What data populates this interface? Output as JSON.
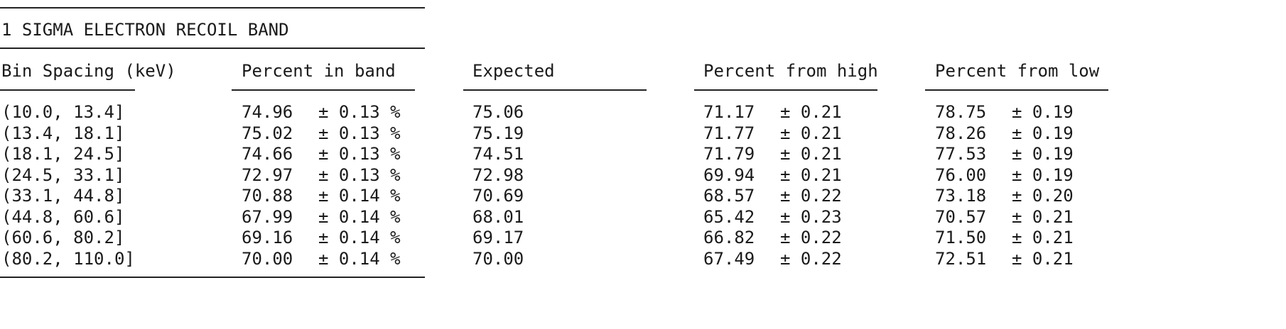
{
  "title": "1 SIGMA ELECTRON RECOIL BAND",
  "headers": [
    "Bin Spacing (keV)",
    "Percent in band",
    "Expected",
    "Percent from high",
    "Percent from low"
  ],
  "rows": [
    {
      "bin": "(10.0, 13.4]",
      "in_band": "74.96",
      "in_band_err": "± 0.13 %",
      "expected": "75.06",
      "high": "71.17",
      "high_err": "± 0.21",
      "low": "78.75",
      "low_err": "± 0.19"
    },
    {
      "bin": "(13.4, 18.1]",
      "in_band": "75.02",
      "in_band_err": "± 0.13 %",
      "expected": "75.19",
      "high": "71.77",
      "high_err": "± 0.21",
      "low": "78.26",
      "low_err": "± 0.19"
    },
    {
      "bin": "(18.1, 24.5]",
      "in_band": "74.66",
      "in_band_err": "± 0.13 %",
      "expected": "74.51",
      "high": "71.79",
      "high_err": "± 0.21",
      "low": "77.53",
      "low_err": "± 0.19"
    },
    {
      "bin": "(24.5, 33.1]",
      "in_band": "72.97",
      "in_band_err": "± 0.13 %",
      "expected": "72.98",
      "high": "69.94",
      "high_err": "± 0.21",
      "low": "76.00",
      "low_err": "± 0.19"
    },
    {
      "bin": "(33.1, 44.8]",
      "in_band": "70.88",
      "in_band_err": "± 0.14 %",
      "expected": "70.69",
      "high": "68.57",
      "high_err": "± 0.22",
      "low": "73.18",
      "low_err": "± 0.20"
    },
    {
      "bin": "(44.8, 60.6]",
      "in_band": "67.99",
      "in_band_err": "± 0.14 %",
      "expected": "68.01",
      "high": "65.42",
      "high_err": "± 0.23",
      "low": "70.57",
      "low_err": "± 0.21"
    },
    {
      "bin": "(60.6, 80.2]",
      "in_band": "69.16",
      "in_band_err": "± 0.14 %",
      "expected": "69.17",
      "high": "66.82",
      "high_err": "± 0.22",
      "low": "71.50",
      "low_err": "± 0.21"
    },
    {
      "bin": "(80.2, 110.0]",
      "in_band": "70.00",
      "in_band_err": "± 0.14 %",
      "expected": "70.00",
      "high": "67.49",
      "high_err": "± 0.22",
      "low": "72.51",
      "low_err": "± 0.21"
    }
  ]
}
